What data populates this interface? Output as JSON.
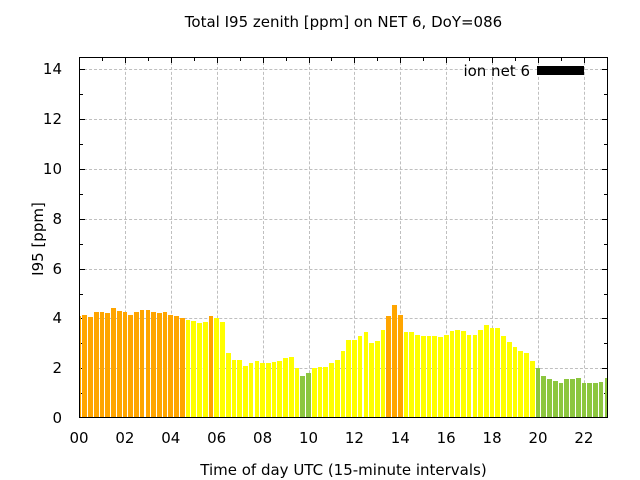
{
  "chart_data": {
    "type": "bar",
    "title": "Total I95 zenith [ppm] on NET 6, DoY=086",
    "xlabel": "Time of day UTC (15-minute intervals)",
    "ylabel": "I95 [ppm]",
    "legend": {
      "label": "ion net 6",
      "swatch_color": "#000000",
      "position": "top-right-inside"
    },
    "grid": true,
    "grid_color": "#bfbfbf",
    "ylim": [
      0,
      14.5
    ],
    "xlim_hours": [
      0,
      23.05
    ],
    "y_ticks": [
      0,
      2,
      4,
      6,
      8,
      10,
      12,
      14
    ],
    "x_tick_labels": [
      "00",
      "02",
      "04",
      "06",
      "08",
      "10",
      "12",
      "14",
      "16",
      "18",
      "20",
      "22"
    ],
    "start_time": "00:00",
    "interval_minutes": 15,
    "color_map": {
      "O": "#ffa500",
      "Y": "#ffff00",
      "G": "#8cc63f"
    },
    "times": [
      "00:00",
      "00:15",
      "00:30",
      "00:45",
      "01:00",
      "01:15",
      "01:30",
      "01:45",
      "02:00",
      "02:15",
      "02:30",
      "02:45",
      "03:00",
      "03:15",
      "03:30",
      "03:45",
      "04:00",
      "04:15",
      "04:30",
      "04:45",
      "05:00",
      "05:15",
      "05:30",
      "05:45",
      "06:00",
      "06:15",
      "06:30",
      "06:45",
      "07:00",
      "07:15",
      "07:30",
      "07:45",
      "08:00",
      "08:15",
      "08:30",
      "08:45",
      "09:00",
      "09:15",
      "09:30",
      "09:45",
      "10:00",
      "10:15",
      "10:30",
      "10:45",
      "11:00",
      "11:15",
      "11:30",
      "11:45",
      "12:00",
      "12:15",
      "12:30",
      "12:45",
      "13:00",
      "13:15",
      "13:30",
      "13:45",
      "14:00",
      "14:15",
      "14:30",
      "14:45",
      "15:00",
      "15:15",
      "15:30",
      "15:45",
      "16:00",
      "16:15",
      "16:30",
      "16:45",
      "17:00",
      "17:15",
      "17:30",
      "17:45",
      "18:00",
      "18:15",
      "18:30",
      "18:45",
      "19:00",
      "19:15",
      "19:30",
      "19:45",
      "20:00",
      "20:15",
      "20:30",
      "20:45",
      "21:00",
      "21:15",
      "21:30",
      "21:45",
      "22:00",
      "22:15",
      "22:30",
      "22:45",
      "23:00"
    ],
    "values": [
      4.1,
      4.15,
      4.05,
      4.25,
      4.25,
      4.2,
      4.4,
      4.3,
      4.25,
      4.15,
      4.25,
      4.35,
      4.35,
      4.25,
      4.2,
      4.25,
      4.15,
      4.1,
      4.0,
      3.95,
      3.9,
      3.8,
      3.85,
      4.1,
      4.0,
      3.85,
      2.6,
      2.35,
      2.35,
      2.1,
      2.2,
      2.3,
      2.2,
      2.2,
      2.25,
      2.3,
      2.4,
      2.45,
      2.0,
      1.7,
      1.8,
      2.0,
      2.05,
      2.05,
      2.2,
      2.35,
      2.7,
      3.15,
      3.15,
      3.3,
      3.45,
      3.0,
      3.1,
      3.55,
      4.1,
      4.55,
      4.15,
      3.45,
      3.45,
      3.35,
      3.3,
      3.3,
      3.3,
      3.25,
      3.35,
      3.5,
      3.55,
      3.5,
      3.35,
      3.35,
      3.55,
      3.75,
      3.6,
      3.6,
      3.3,
      3.05,
      2.85,
      2.7,
      2.6,
      2.3,
      2.0,
      1.7,
      1.55,
      1.5,
      1.4,
      1.55,
      1.55,
      1.6,
      1.4,
      1.4,
      1.4,
      1.45,
      1.6
    ],
    "bar_colors": [
      "O",
      "O",
      "O",
      "O",
      "O",
      "O",
      "O",
      "O",
      "O",
      "O",
      "O",
      "O",
      "O",
      "O",
      "O",
      "O",
      "O",
      "O",
      "O",
      "Y",
      "Y",
      "Y",
      "Y",
      "O",
      "Y",
      "Y",
      "Y",
      "Y",
      "Y",
      "Y",
      "Y",
      "Y",
      "Y",
      "Y",
      "Y",
      "Y",
      "Y",
      "Y",
      "Y",
      "G",
      "G",
      "Y",
      "Y",
      "Y",
      "Y",
      "Y",
      "Y",
      "Y",
      "Y",
      "Y",
      "Y",
      "Y",
      "Y",
      "Y",
      "O",
      "O",
      "O",
      "Y",
      "Y",
      "Y",
      "Y",
      "Y",
      "Y",
      "Y",
      "Y",
      "Y",
      "Y",
      "Y",
      "Y",
      "Y",
      "Y",
      "Y",
      "Y",
      "Y",
      "Y",
      "Y",
      "Y",
      "Y",
      "Y",
      "Y",
      "G",
      "G",
      "G",
      "G",
      "G",
      "G",
      "G",
      "G",
      "G",
      "G",
      "G",
      "G",
      "G"
    ]
  }
}
